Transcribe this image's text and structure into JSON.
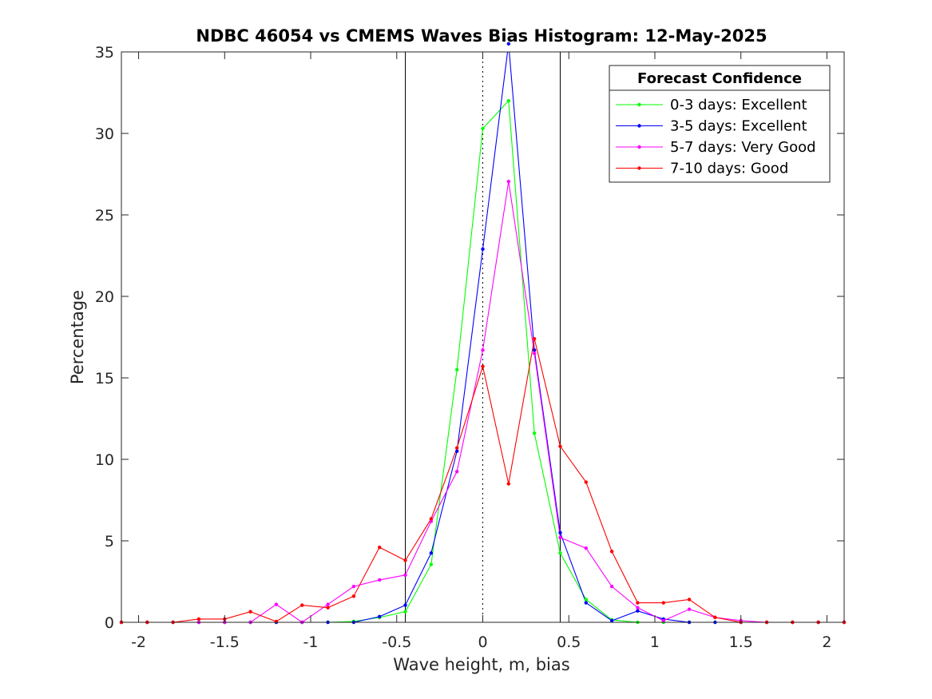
{
  "chart_data": {
    "type": "line",
    "title": "NDBC 46054 vs CMEMS Waves Bias Histogram: 12-May-2025",
    "xlabel": "Wave height, m, bias",
    "ylabel": "Percentage",
    "xlim": [
      -2.1,
      2.1
    ],
    "ylim": [
      0,
      35
    ],
    "xticks": [
      -2,
      -1.5,
      -1,
      -0.5,
      0,
      0.5,
      1,
      1.5,
      2
    ],
    "xtick_labels": [
      "-2",
      "-1.5",
      "-1",
      "-0.5",
      "0",
      "0.5",
      "1",
      "1.5",
      "2"
    ],
    "yticks": [
      0,
      5,
      10,
      15,
      20,
      25,
      30,
      35
    ],
    "ytick_labels": [
      "0",
      "5",
      "10",
      "15",
      "20",
      "25",
      "30",
      "35"
    ],
    "grid": false,
    "vlines_solid": [
      -0.45,
      0.45
    ],
    "vline_dotted": 0,
    "legend": {
      "title": "Forecast Confidence",
      "placement": "top-right"
    },
    "x": [
      -2.1,
      -1.95,
      -1.8,
      -1.65,
      -1.5,
      -1.35,
      -1.2,
      -1.05,
      -0.9,
      -0.75,
      -0.6,
      -0.45,
      -0.3,
      -0.15,
      0,
      0.15,
      0.3,
      0.45,
      0.6,
      0.75,
      0.9,
      1.05,
      1.2,
      1.35,
      1.5,
      1.65,
      1.8,
      1.95,
      2.1
    ],
    "series": [
      {
        "name": "0-3 days: Excellent",
        "color": "#00ff00",
        "values": [
          0,
          0,
          0,
          0,
          0,
          0,
          0,
          0,
          0,
          0.05,
          0.3,
          0.65,
          3.55,
          15.5,
          30.3,
          32,
          11.6,
          4.25,
          1.4,
          0.15,
          0,
          0,
          0,
          0,
          0,
          0,
          0,
          0,
          0
        ]
      },
      {
        "name": "3-5 days: Excellent",
        "color": "#0000ff",
        "values": [
          0,
          0,
          0,
          0,
          0,
          0,
          0,
          0,
          0,
          0,
          0.35,
          1.05,
          4.25,
          10.5,
          22.9,
          35.5,
          16.7,
          5.5,
          1.2,
          0.1,
          0.7,
          0.2,
          0,
          0,
          0,
          0,
          0,
          0,
          0
        ]
      },
      {
        "name": "5-7 days: Very Good",
        "color": "#ff00ff",
        "values": [
          0,
          0,
          0,
          0,
          0,
          0,
          1.1,
          0,
          1.1,
          2.2,
          2.6,
          2.9,
          6.2,
          9.25,
          16.7,
          27.05,
          16.5,
          5.2,
          4.55,
          2.2,
          0.9,
          0.1,
          0.8,
          0.3,
          0.1,
          0,
          0,
          0,
          0
        ]
      },
      {
        "name": "7-10 days: Good",
        "color": "#ff0000",
        "values": [
          0,
          0,
          0,
          0.2,
          0.2,
          0.65,
          0.05,
          1.05,
          0.9,
          1.6,
          4.6,
          3.8,
          6.35,
          10.7,
          15.7,
          8.5,
          17.4,
          10.8,
          8.6,
          4.35,
          1.2,
          1.2,
          1.4,
          0.3,
          0,
          0,
          0,
          0,
          0
        ]
      }
    ]
  }
}
